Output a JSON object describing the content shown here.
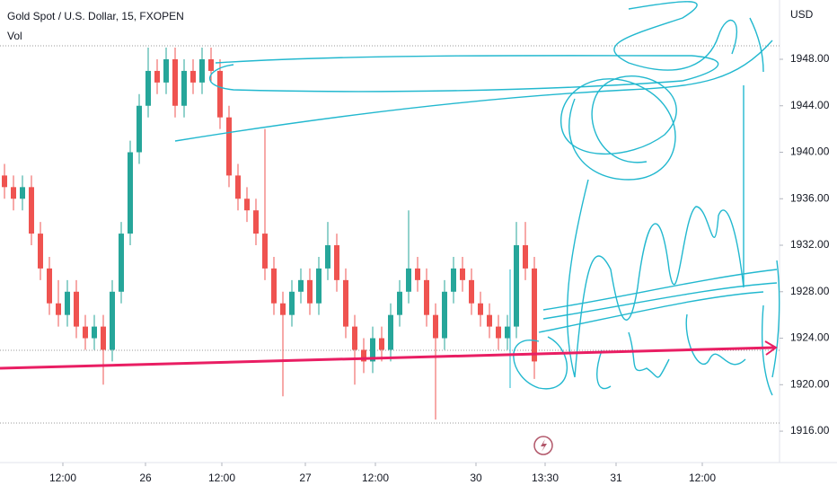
{
  "chart_data": {
    "type": "candlestick",
    "title": "Gold Spot / U.S. Dollar, 15, FXOPEN",
    "subtitle": "Vol",
    "y_axis_label": "USD",
    "up_color": "#26a69a",
    "down_color": "#ef5350",
    "x": [
      0.5,
      1.5,
      2.5,
      3.5,
      4.5,
      5.5,
      6.5,
      7.5,
      8.5,
      9.5,
      10.5,
      11.5,
      12.5,
      13.5,
      14.5,
      15.5,
      16.5,
      17.5,
      18.5,
      19.5,
      20.5,
      21.5,
      22.5,
      23.5,
      24.5,
      25.5,
      26.5,
      27.5,
      28.5,
      29.5,
      30.5,
      31.5,
      32.5,
      33.5,
      34.5,
      35.5,
      36.5,
      37.5,
      38.5,
      39.5,
      40.5,
      41.5,
      42.5,
      43.5,
      44.5,
      45.5,
      46.5,
      47.5,
      48.5,
      49.5,
      50.5,
      51.5,
      52.5,
      53.5,
      54.5,
      55.5,
      56.5,
      57.5,
      58.5,
      59.5
    ],
    "open": [
      1938,
      1937,
      1936,
      1937,
      1933,
      1930,
      1927,
      1926,
      1928,
      1925,
      1924,
      1925,
      1923,
      1928,
      1933,
      1940,
      1944,
      1947,
      1946,
      1948,
      1944,
      1947,
      1946,
      1948,
      1947,
      1943,
      1938,
      1936,
      1935,
      1933,
      1930,
      1927,
      1926,
      1928,
      1929,
      1927,
      1930,
      1932,
      1929,
      1925,
      1923,
      1922,
      1924,
      1923,
      1926,
      1928,
      1930,
      1929,
      1926,
      1924,
      1928,
      1930,
      1929,
      1927,
      1926,
      1925,
      1924,
      1925,
      1932,
      1930
    ],
    "high": [
      1939,
      1938,
      1938,
      1938,
      1934,
      1931,
      1929,
      1929,
      1929,
      1926,
      1926,
      1926,
      1929,
      1934,
      1941,
      1945,
      1949,
      1948,
      1949,
      1949,
      1948,
      1948,
      1949,
      1949,
      1948,
      1944,
      1939,
      1937,
      1936,
      1942,
      1931,
      1928,
      1929,
      1930,
      1930,
      1931,
      1934,
      1933,
      1930,
      1926,
      1924,
      1925,
      1925,
      1927,
      1929,
      1935,
      1931,
      1930,
      1927,
      1929,
      1931,
      1931,
      1930,
      1928,
      1927,
      1926,
      1926,
      1934,
      1934,
      1931
    ],
    "low": [
      1936,
      1935,
      1935,
      1932,
      1929,
      1926,
      1925,
      1925,
      1924,
      1923,
      1923,
      1920,
      1922,
      1927,
      1932,
      1939,
      1943,
      1945,
      1945,
      1943,
      1943,
      1945,
      1945,
      1946,
      1942,
      1937,
      1935,
      1934,
      1932,
      1929,
      1926,
      1919,
      1925,
      1927,
      1926,
      1926,
      1929,
      1928,
      1924,
      1920,
      1921,
      1921,
      1922,
      1922,
      1925,
      1927,
      1928,
      1925,
      1917,
      1923,
      1927,
      1928,
      1926,
      1925,
      1924,
      1923,
      1923,
      1924,
      1929,
      1920.5
    ],
    "close": [
      1937,
      1936,
      1937,
      1933,
      1930,
      1927,
      1926,
      1928,
      1925,
      1924,
      1925,
      1923,
      1928,
      1933,
      1940,
      1944,
      1947,
      1946,
      1948,
      1944,
      1947,
      1946,
      1948,
      1947,
      1943,
      1938,
      1936,
      1935,
      1933,
      1930,
      1927,
      1926,
      1928,
      1929,
      1927,
      1930,
      1932,
      1929,
      1925,
      1923,
      1922,
      1924,
      1923,
      1926,
      1928,
      1930,
      1929,
      1926,
      1924,
      1928,
      1930,
      1929,
      1927,
      1926,
      1925,
      1924,
      1925,
      1932,
      1930,
      1922
    ],
    "xlim": [
      0,
      86.8
    ],
    "xticks": [
      {
        "value": 7,
        "label": "12:00"
      },
      {
        "value": 16.2,
        "label": "26"
      },
      {
        "value": 24.7,
        "label": "12:00"
      },
      {
        "value": 34,
        "label": "27"
      },
      {
        "value": 41.8,
        "label": "12:00"
      },
      {
        "value": 53,
        "label": "30"
      },
      {
        "value": 60.7,
        "label": "13:30"
      },
      {
        "value": 68.6,
        "label": "31"
      },
      {
        "value": 78.2,
        "label": "12:00"
      }
    ],
    "ylim": [
      1913.3,
      1953.1
    ],
    "yticks": [
      {
        "value": 1916,
        "label": "1916.00"
      },
      {
        "value": 1920,
        "label": "1920.00"
      },
      {
        "value": 1924,
        "label": "1924.00"
      },
      {
        "value": 1928,
        "label": "1928.00"
      },
      {
        "value": 1932,
        "label": "1932.00"
      },
      {
        "value": 1936,
        "label": "1936.00"
      },
      {
        "value": 1940,
        "label": "1940.00"
      },
      {
        "value": 1944,
        "label": "1944.00"
      },
      {
        "value": 1948,
        "label": "1948.00"
      }
    ]
  }
}
